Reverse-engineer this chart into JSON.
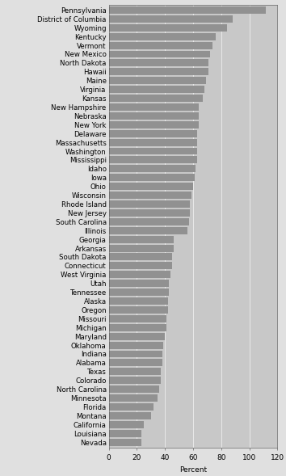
{
  "states": [
    "Pennsylvania",
    "District of Columbia",
    "Wyoming",
    "Kentucky",
    "Vermont",
    "New Mexico",
    "North Dakota",
    "Hawaii",
    "Maine",
    "Virginia",
    "Kansas",
    "New Hampshire",
    "Nebraska",
    "New York",
    "Delaware",
    "Massachusetts",
    "Washington",
    "Mississippi",
    "Idaho",
    "Iowa",
    "Ohio",
    "Wisconsin",
    "Rhode Island",
    "New Jersey",
    "South Carolina",
    "Illinois",
    "Georgia",
    "Arkansas",
    "South Dakota",
    "Connecticut",
    "West Virginia",
    "Utah",
    "Tennessee",
    "Alaska",
    "Oregon",
    "Missouri",
    "Michigan",
    "Maryland",
    "Oklahoma",
    "Indiana",
    "Alabama",
    "Texas",
    "Colorado",
    "North Carolina",
    "Minnesota",
    "Florida",
    "Montana",
    "California",
    "Louisiana",
    "Nevada"
  ],
  "values": [
    112,
    88,
    84,
    76,
    74,
    72,
    71,
    71,
    69,
    68,
    67,
    64,
    64,
    64,
    63,
    63,
    63,
    63,
    62,
    61,
    60,
    59,
    58,
    58,
    57,
    56,
    46,
    46,
    45,
    45,
    44,
    43,
    43,
    42,
    42,
    41,
    41,
    40,
    39,
    38,
    38,
    37,
    37,
    36,
    35,
    32,
    30,
    25,
    23,
    23
  ],
  "bar_color": "#919191",
  "fig_background": "#e0e0e0",
  "plot_background": "#c8c8c8",
  "xlabel": "Percent",
  "xlim": [
    0,
    120
  ],
  "xticks": [
    0,
    20,
    40,
    60,
    80,
    100,
    120
  ],
  "grid_color": "#e8e8e8",
  "bar_height": 0.82,
  "label_fontsize": 6.2,
  "tick_fontsize": 6.5
}
